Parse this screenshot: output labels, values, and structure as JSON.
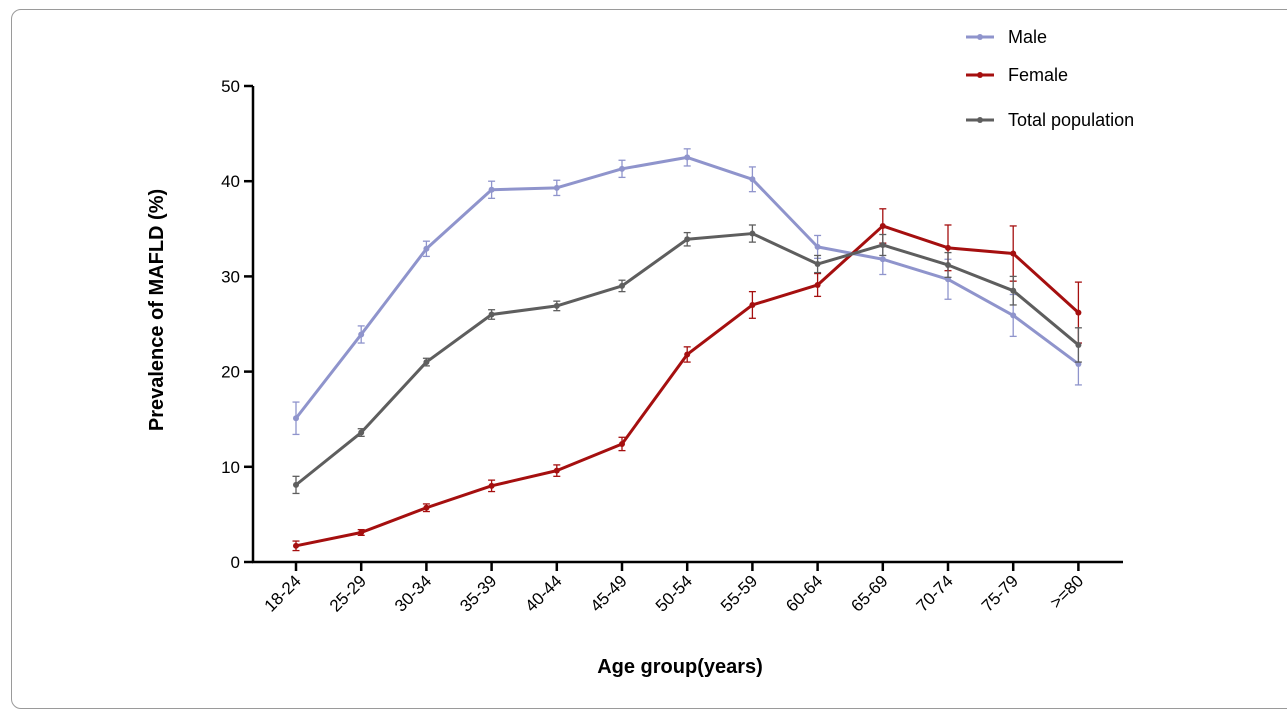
{
  "chart_data": {
    "type": "line",
    "title": "",
    "xlabel": "Age group(years)",
    "ylabel": "Prevalence of MAFLD (%)",
    "ylim": [
      0,
      50
    ],
    "yticks": [
      "0",
      "10",
      "20",
      "30",
      "40",
      "50"
    ],
    "categories": [
      "18-24",
      "25-29",
      "30-34",
      "35-39",
      "40-44",
      "45-49",
      "50-54",
      "55-59",
      "60-64",
      "65-69",
      "70-74",
      "75-79",
      ">=80"
    ],
    "legend_position": "top-right",
    "series": [
      {
        "name": "Male",
        "color": "#8f94cc",
        "values": [
          15.1,
          23.9,
          32.9,
          39.1,
          39.3,
          41.3,
          42.5,
          40.2,
          33.1,
          31.8,
          29.7,
          25.9,
          20.8
        ],
        "err": [
          1.7,
          0.9,
          0.8,
          0.9,
          0.8,
          0.9,
          0.9,
          1.3,
          1.2,
          1.6,
          2.1,
          2.2,
          2.2
        ]
      },
      {
        "name": "Female",
        "color": "#a50f0f",
        "values": [
          1.7,
          3.1,
          5.7,
          8.0,
          9.6,
          12.4,
          21.8,
          27.0,
          29.1,
          35.3,
          33.0,
          32.4,
          26.2
        ],
        "err": [
          0.5,
          0.3,
          0.4,
          0.6,
          0.6,
          0.7,
          0.8,
          1.4,
          1.2,
          1.8,
          2.4,
          2.9,
          3.2
        ]
      },
      {
        "name": "Total population",
        "color": "#5e5e5e",
        "values": [
          8.1,
          13.6,
          21.0,
          26.0,
          26.9,
          29.0,
          33.9,
          34.5,
          31.3,
          33.3,
          31.2,
          28.5,
          22.8
        ],
        "err": [
          0.9,
          0.4,
          0.4,
          0.5,
          0.5,
          0.6,
          0.7,
          0.9,
          0.9,
          1.1,
          1.3,
          1.5,
          1.8
        ]
      }
    ]
  }
}
